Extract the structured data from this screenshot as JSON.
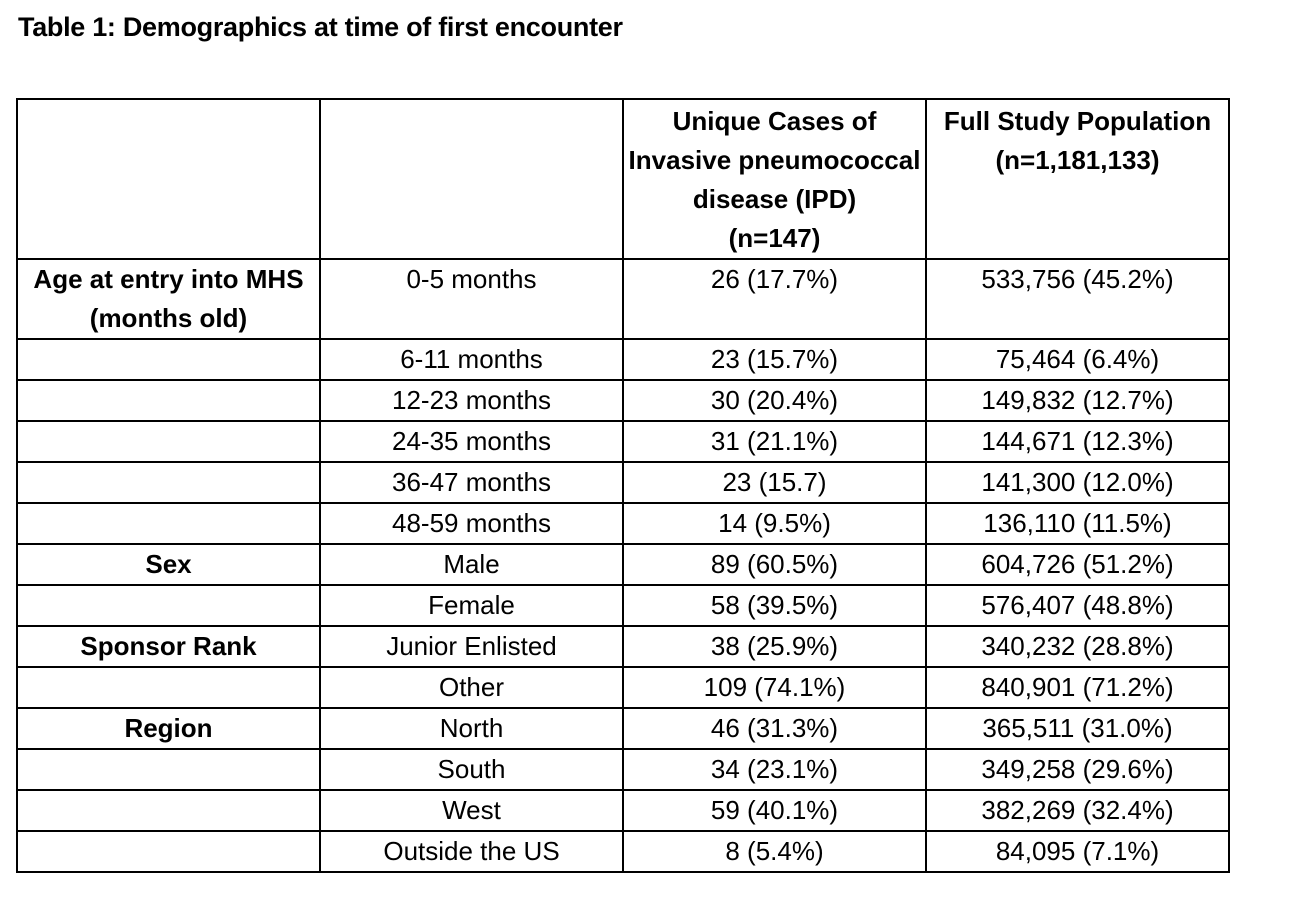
{
  "title": "Table 1: Demographics at time of first encounter",
  "columns": {
    "col3": "Unique Cases of Invasive pneumococcal disease (IPD) (n=147)",
    "col3_lines": [
      "Unique Cases of",
      "Invasive pneumococcal",
      "disease (IPD)",
      "(n=147)"
    ],
    "col4_lines": [
      "Full Study Population",
      "(n=1,181,133)"
    ]
  },
  "rows": [
    {
      "group": [
        "Age at entry into MHS",
        "(months old)"
      ],
      "label": "0-5 months",
      "ipd": "26 (17.7%)",
      "pop": "533,756 (45.2%)"
    },
    {
      "group": [],
      "label": "6-11 months",
      "ipd": "23 (15.7%)",
      "pop": "75,464 (6.4%)"
    },
    {
      "group": [],
      "label": "12-23 months",
      "ipd": "30 (20.4%)",
      "pop": "149,832 (12.7%)"
    },
    {
      "group": [],
      "label": "24-35 months",
      "ipd": "31 (21.1%)",
      "pop": "144,671 (12.3%)"
    },
    {
      "group": [],
      "label": "36-47 months",
      "ipd": "23 (15.7)",
      "pop": "141,300 (12.0%)"
    },
    {
      "group": [],
      "label": "48-59 months",
      "ipd": "14 (9.5%)",
      "pop": "136,110 (11.5%)"
    },
    {
      "group": [
        "Sex"
      ],
      "label": "Male",
      "ipd": "89 (60.5%)",
      "pop": "604,726 (51.2%)"
    },
    {
      "group": [],
      "label": "Female",
      "ipd": "58 (39.5%)",
      "pop": "576,407 (48.8%)"
    },
    {
      "group": [
        "Sponsor Rank"
      ],
      "label": "Junior Enlisted",
      "ipd": "38 (25.9%)",
      "pop": "340,232 (28.8%)"
    },
    {
      "group": [],
      "label": "Other",
      "ipd": "109 (74.1%)",
      "pop": "840,901 (71.2%)"
    },
    {
      "group": [
        "Region"
      ],
      "label": "North",
      "ipd": "46 (31.3%)",
      "pop": "365,511 (31.0%)"
    },
    {
      "group": [],
      "label": "South",
      "ipd": "34 (23.1%)",
      "pop": "349,258 (29.6%)"
    },
    {
      "group": [],
      "label": "West",
      "ipd": "59 (40.1%)",
      "pop": "382,269 (32.4%)"
    },
    {
      "group": [],
      "label": "Outside the US",
      "ipd": "8 (5.4%)",
      "pop": "84,095 (7.1%)"
    }
  ]
}
